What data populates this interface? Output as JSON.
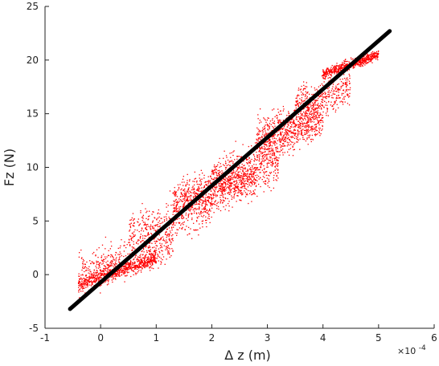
{
  "chart_data": {
    "type": "scatter",
    "xlabel": "Δ z (m)",
    "ylabel": "Fz (N)",
    "x_exponent_label": "×10",
    "x_exponent_power": "-4",
    "x_multiplier": 0.0001,
    "xlim": [
      -1,
      6
    ],
    "ylim": [
      -5,
      25
    ],
    "xticks": [
      -1,
      0,
      1,
      2,
      3,
      4,
      5,
      6
    ],
    "yticks": [
      -5,
      0,
      5,
      10,
      15,
      20,
      25
    ],
    "xtick_labels": [
      "-1",
      "0",
      "1",
      "2",
      "3",
      "4",
      "5",
      "6"
    ],
    "ytick_labels": [
      "-5",
      "0",
      "5",
      "10",
      "15",
      "20",
      "25"
    ],
    "grid": false,
    "series": [
      {
        "kind": "scatter",
        "color": "#ff0000",
        "clusters": [
          {
            "x_range": [
              -0.4,
              1.0
            ],
            "y_center": 0.3,
            "y_spread": 0.7,
            "count": 700
          },
          {
            "x_range": [
              -0.4,
              1.3
            ],
            "y_center": 1.5,
            "y_spread": 2.0,
            "count": 500
          },
          {
            "x_range": [
              0.5,
              2.0
            ],
            "y_center": 5.0,
            "y_spread": 2.2,
            "count": 400
          },
          {
            "x_range": [
              1.3,
              2.8
            ],
            "y_center": 8.0,
            "y_spread": 2.2,
            "count": 800
          },
          {
            "x_range": [
              2.0,
              3.2
            ],
            "y_center": 9.5,
            "y_spread": 2.4,
            "count": 500
          },
          {
            "x_range": [
              2.8,
              4.0
            ],
            "y_center": 13.5,
            "y_spread": 2.2,
            "count": 800
          },
          {
            "x_range": [
              3.5,
              4.5
            ],
            "y_center": 16.5,
            "y_spread": 2.0,
            "count": 400
          },
          {
            "x_range": [
              4.0,
              5.0
            ],
            "y_center": 19.6,
            "y_spread": 0.5,
            "count": 600
          }
        ]
      },
      {
        "kind": "line",
        "color": "#000000",
        "x": [
          -0.55,
          5.2
        ],
        "y": [
          -3.2,
          22.7
        ]
      }
    ]
  }
}
